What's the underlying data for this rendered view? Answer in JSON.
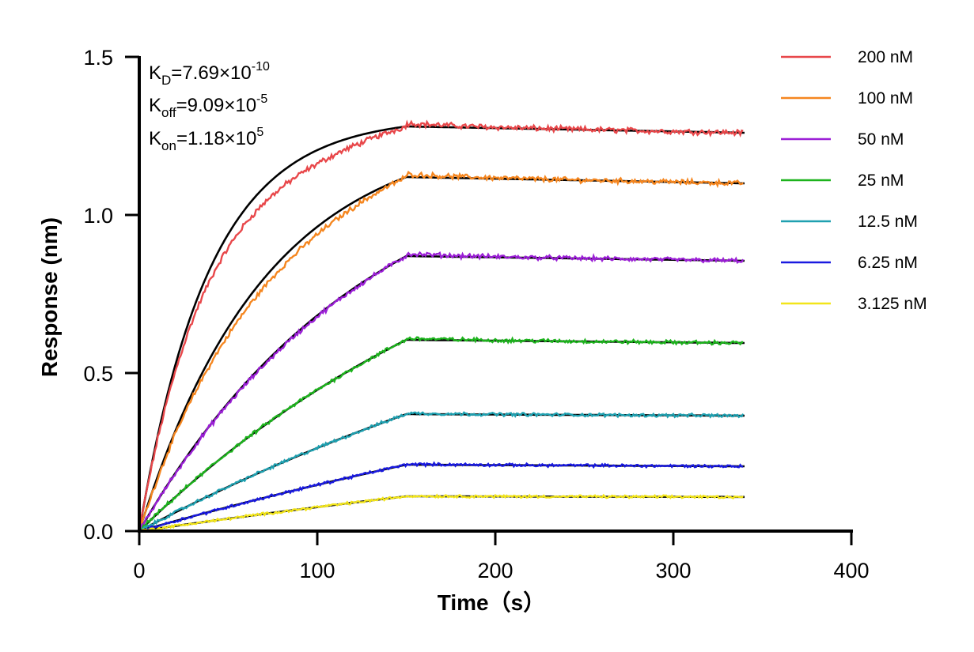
{
  "chart_data": {
    "type": "line",
    "title": "",
    "xlabel": "Time（s）",
    "ylabel": "Response (nm)",
    "xlim": [
      0,
      400
    ],
    "ylim": [
      0,
      1.5
    ],
    "x_ticks": [
      0,
      100,
      200,
      300,
      400
    ],
    "x_tick_labels": [
      "0",
      "100",
      "200",
      "300",
      "400"
    ],
    "y_ticks": [
      0,
      0.5,
      1.0,
      1.5
    ],
    "y_tick_labels": [
      "0.0",
      "0.5",
      "1.0",
      "1.5"
    ],
    "grid": false,
    "legend_position": "top-right",
    "association_end": 150,
    "time_end": 340,
    "fit_color": "#000000",
    "annotations": {
      "kd": {
        "base": "K",
        "sub": "D",
        "value": "=7.69×10",
        "exp": "-10"
      },
      "koff": {
        "base": "K",
        "sub": "off",
        "value": "=9.09×10",
        "exp": "-5"
      },
      "kon": {
        "base": "K",
        "sub": "on",
        "value": "=1.18×10",
        "exp": "5"
      }
    },
    "series": [
      {
        "name": "200 nM",
        "color": "#e8474a",
        "plateau": 1.28,
        "end_value": 1.26,
        "fit_k": 0.0253,
        "lag": 0.78
      },
      {
        "name": "100 nM",
        "color": "#f5861f",
        "plateau": 1.12,
        "end_value": 1.1,
        "fit_k": 0.0141,
        "lag": 0.5
      },
      {
        "name": "50 nM",
        "color": "#9b1fd6",
        "plateau": 0.87,
        "end_value": 0.855,
        "fit_k": 0.0077,
        "lag": 0.1
      },
      {
        "name": "25 nM",
        "color": "#1db31d",
        "plateau": 0.605,
        "end_value": 0.595,
        "fit_k": 0.0045,
        "lag": 0.0
      },
      {
        "name": "12.5 nM",
        "color": "#1fa0b0",
        "plateau": 0.37,
        "end_value": 0.365,
        "fit_k": 0.0027,
        "lag": 0.0
      },
      {
        "name": "6.25 nM",
        "color": "#1a1ae0",
        "plateau": 0.21,
        "end_value": 0.205,
        "fit_k": 0.0018,
        "lag": 0.0
      },
      {
        "name": "3.125 nM",
        "color": "#f2e51a",
        "plateau": 0.11,
        "end_value": 0.108,
        "fit_k": 0.0014,
        "lag": 0.0
      }
    ]
  }
}
